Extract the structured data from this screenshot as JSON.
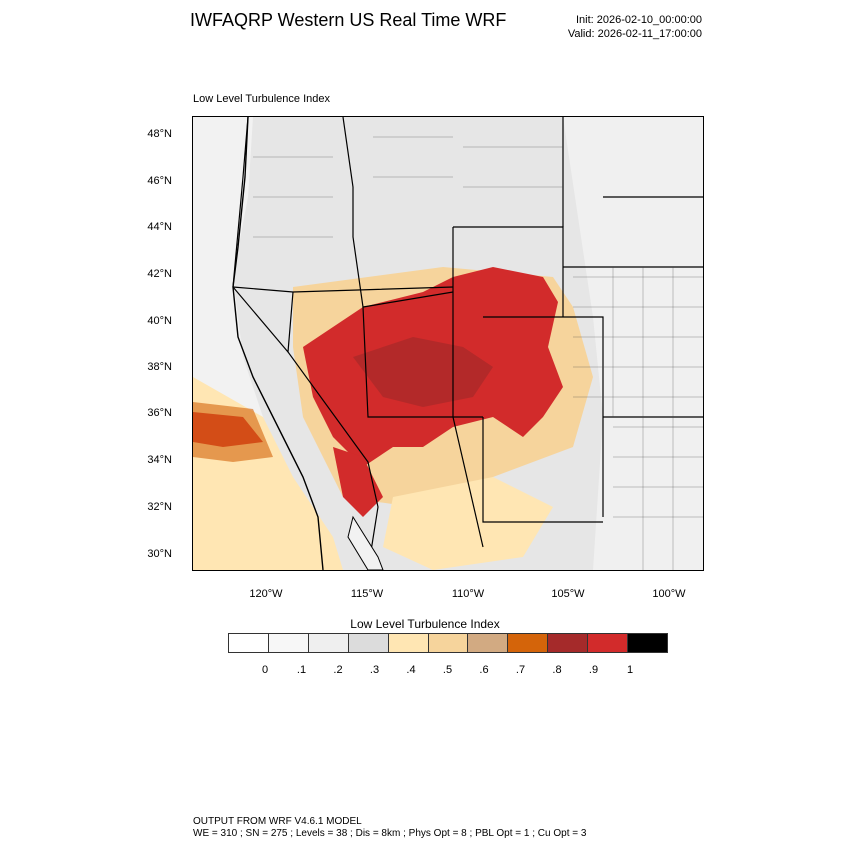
{
  "header": {
    "title": "IWFAQRP Western US Real Time WRF",
    "init": "Init: 2026-02-10_00:00:00",
    "valid": "Valid: 2026-02-11_17:00:00"
  },
  "panel": {
    "label": "Low Level Turbulence Index"
  },
  "map": {
    "lat_ticks": [
      "48°N",
      "46°N",
      "44°N",
      "42°N",
      "40°N",
      "38°N",
      "36°N",
      "34°N",
      "32°N",
      "30°N"
    ],
    "lon_ticks": [
      "120°W",
      "115°W",
      "110°W",
      "105°W",
      "100°W"
    ]
  },
  "colorbar": {
    "title": "Low Level Turbulence Index",
    "colors": [
      "#ffffff",
      "#f7f7f7",
      "#efefef",
      "#dcdcdc",
      "#ffe6b3",
      "#f6d49c",
      "#d2aa82",
      "#d4640a",
      "#a52a2a",
      "#d22b2b",
      "#000000"
    ],
    "ticks": [
      "0",
      ".1",
      ".2",
      ".3",
      ".4",
      ".5",
      ".6",
      ".7",
      ".8",
      ".9",
      "1"
    ]
  },
  "footer": {
    "line1": "OUTPUT FROM WRF V4.6.1 MODEL",
    "line2": "WE = 310 ; SN = 275 ; Levels = 38 ; Dis = 8km ; Phys Opt = 8 ; PBL Opt = 1 ; Cu Opt = 3"
  }
}
